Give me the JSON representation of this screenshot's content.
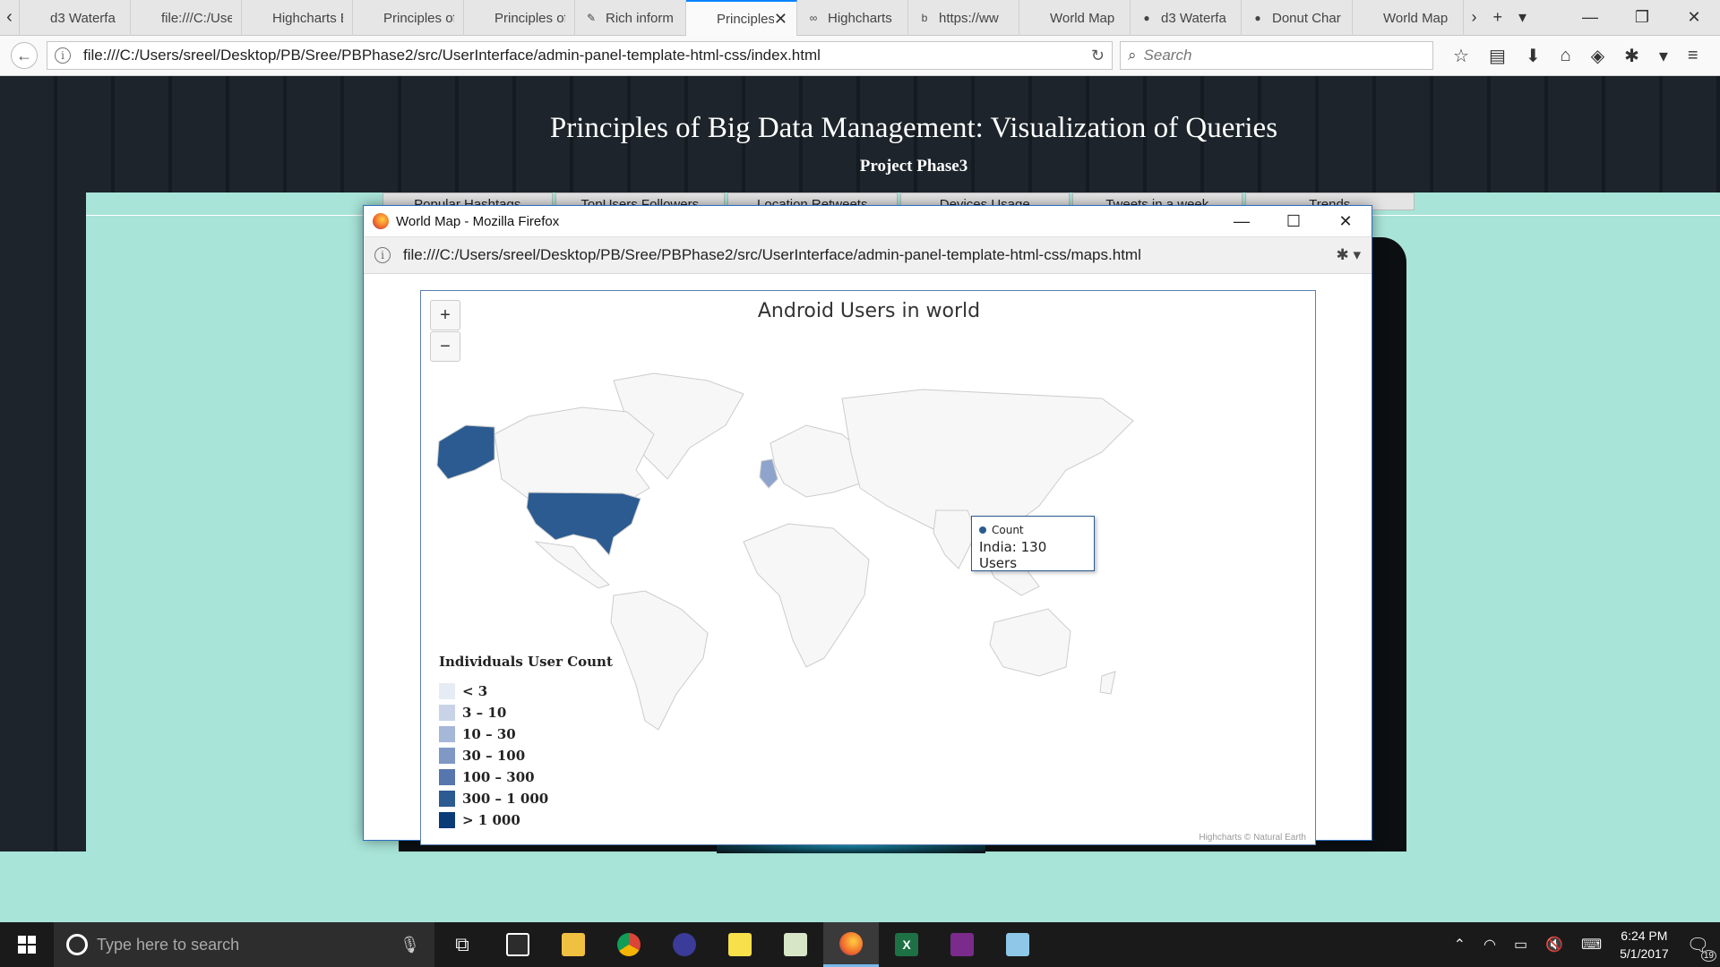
{
  "browser": {
    "tabs": [
      {
        "title": "d3 Waterfa",
        "icon": "file-icon"
      },
      {
        "title": "file:///C:/Users/",
        "icon": "file-icon"
      },
      {
        "title": "Highcharts Exa",
        "icon": "file-icon"
      },
      {
        "title": "Principles of Bi",
        "icon": "file-icon"
      },
      {
        "title": "Principles of Bi",
        "icon": "file-icon"
      },
      {
        "title": "Rich inform",
        "icon": "pen-icon"
      },
      {
        "title": "Principles o",
        "icon": "file-icon",
        "active": true
      },
      {
        "title": "Highcharts",
        "icon": "highcharts-icon"
      },
      {
        "title": "https://ww",
        "icon": "bing-icon"
      },
      {
        "title": "World Map",
        "icon": "file-icon"
      },
      {
        "title": "d3 Waterfa",
        "icon": "chrome-icon"
      },
      {
        "title": "Donut Char",
        "icon": "chrome-icon"
      },
      {
        "title": "World Map",
        "icon": "file-icon"
      }
    ],
    "url": "file:///C:/Users/sreel/Desktop/PB/Sree/PBPhase2/src/UserInterface/admin-panel-template-html-css/index.html",
    "search_placeholder": "Search"
  },
  "page": {
    "title": "Principles of Big Data Management: Visualization of Queries",
    "subtitle": "Project Phase3",
    "nav_tabs": [
      "Popular Hashtags",
      "TopUsers Followers",
      "Location Retweets",
      "Devices Usage",
      "Tweets in a week",
      "Trends"
    ]
  },
  "popup": {
    "window_title": "World Map - Mozilla Firefox",
    "url": "file:///C:/Users/sreel/Desktop/PB/Sree/PBPhase2/src/UserInterface/admin-panel-template-html-css/maps.html",
    "map": {
      "title": "Android Users in world",
      "zoom_in": "+",
      "zoom_out": "−",
      "legend_title": "Individuals User Count",
      "legend": [
        {
          "label": "< 3",
          "color": "#e6ebf5"
        },
        {
          "label": "3 – 10",
          "color": "#c8d3e8"
        },
        {
          "label": "10 – 30",
          "color": "#a6b8d8"
        },
        {
          "label": "30 – 100",
          "color": "#7f98c4"
        },
        {
          "label": "100 – 300",
          "color": "#5677ad"
        },
        {
          "label": "300 – 1 000",
          "color": "#2b5b91"
        },
        {
          "label": "> 1 000",
          "color": "#0a3a78"
        }
      ],
      "tooltip": {
        "series": "Count",
        "value": "India: 130 Users"
      },
      "credits": "Highcharts © Natural Earth",
      "colors": {
        "land": "#f7f7f7",
        "border": "#cccccc",
        "usa": "#2b5b91",
        "uk": "#8ea4cc"
      }
    }
  },
  "taskbar": {
    "search_placeholder": "Type here to search",
    "time": "6:24 PM",
    "date": "5/1/2017",
    "notifications": "19"
  }
}
